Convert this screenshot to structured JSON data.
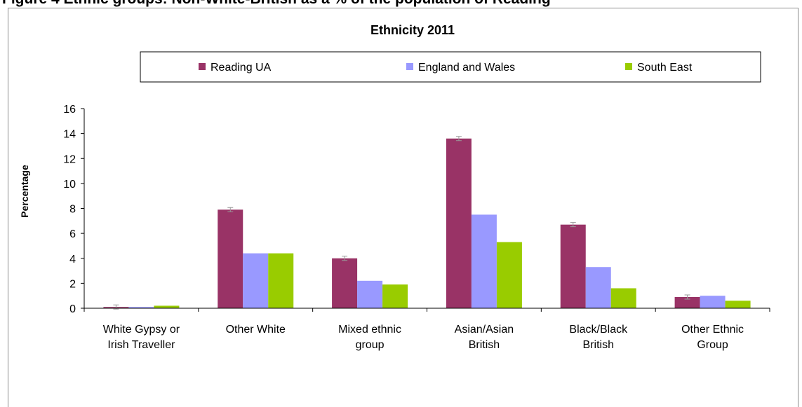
{
  "page_heading": "Figure 4 Ethnic groups: Non-White-British as a % of the population of Reading",
  "chart_data": {
    "type": "bar",
    "title": "Ethnicity 2011",
    "xlabel": "",
    "ylabel": "Percentage",
    "ylim": [
      0,
      16
    ],
    "yticks": [
      0,
      2,
      4,
      6,
      8,
      10,
      12,
      14,
      16
    ],
    "grid": false,
    "legend_position": "top",
    "categories": [
      [
        "White Gypsy or",
        "Irish Traveller"
      ],
      [
        "Other White"
      ],
      [
        "Mixed ethnic",
        "group"
      ],
      [
        "Asian/Asian",
        "British"
      ],
      [
        "Black/Black",
        "British"
      ],
      [
        "Other Ethnic",
        "Group"
      ]
    ],
    "series": [
      {
        "name": "Reading UA",
        "color": "#993366",
        "values": [
          0.1,
          7.9,
          4.0,
          13.6,
          6.7,
          0.9
        ],
        "error_bars": true
      },
      {
        "name": "England and Wales",
        "color": "#9999ff",
        "values": [
          0.1,
          4.4,
          2.2,
          7.5,
          3.3,
          1.0
        ],
        "error_bars": false
      },
      {
        "name": "South East",
        "color": "#99cc00",
        "values": [
          0.2,
          4.4,
          1.9,
          5.3,
          1.6,
          0.6
        ],
        "error_bars": false
      }
    ]
  }
}
